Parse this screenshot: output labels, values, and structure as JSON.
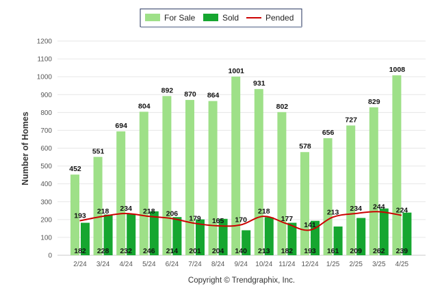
{
  "chart_data": {
    "type": "bar",
    "categories": [
      "2/24",
      "3/24",
      "4/24",
      "5/24",
      "6/24",
      "7/24",
      "8/24",
      "9/24",
      "10/24",
      "11/24",
      "12/24",
      "1/25",
      "2/25",
      "3/25",
      "4/25"
    ],
    "series": [
      {
        "name": "For Sale",
        "type": "bar",
        "color": "#9ee088",
        "values": [
          452,
          551,
          694,
          804,
          892,
          870,
          864,
          1001,
          931,
          802,
          578,
          656,
          727,
          829,
          1008
        ]
      },
      {
        "name": "Sold",
        "type": "bar",
        "color": "#16a630",
        "values": [
          182,
          228,
          232,
          246,
          214,
          201,
          204,
          140,
          213,
          182,
          193,
          161,
          209,
          262,
          239
        ]
      },
      {
        "name": "Pended",
        "type": "line",
        "color": "#cc0000",
        "values": [
          193,
          218,
          234,
          218,
          206,
          179,
          165,
          170,
          218,
          177,
          141,
          213,
          234,
          244,
          224
        ]
      }
    ],
    "ylabel": "Number of Homes",
    "xlabel": "",
    "ylim": [
      0,
      1200
    ],
    "yticks": [
      0,
      100,
      200,
      300,
      400,
      500,
      600,
      700,
      800,
      900,
      1000,
      1100,
      1200
    ],
    "grid": true,
    "legend_position": "top-center"
  },
  "footer": {
    "copyright": "Copyright © Trendgraphix, Inc."
  }
}
